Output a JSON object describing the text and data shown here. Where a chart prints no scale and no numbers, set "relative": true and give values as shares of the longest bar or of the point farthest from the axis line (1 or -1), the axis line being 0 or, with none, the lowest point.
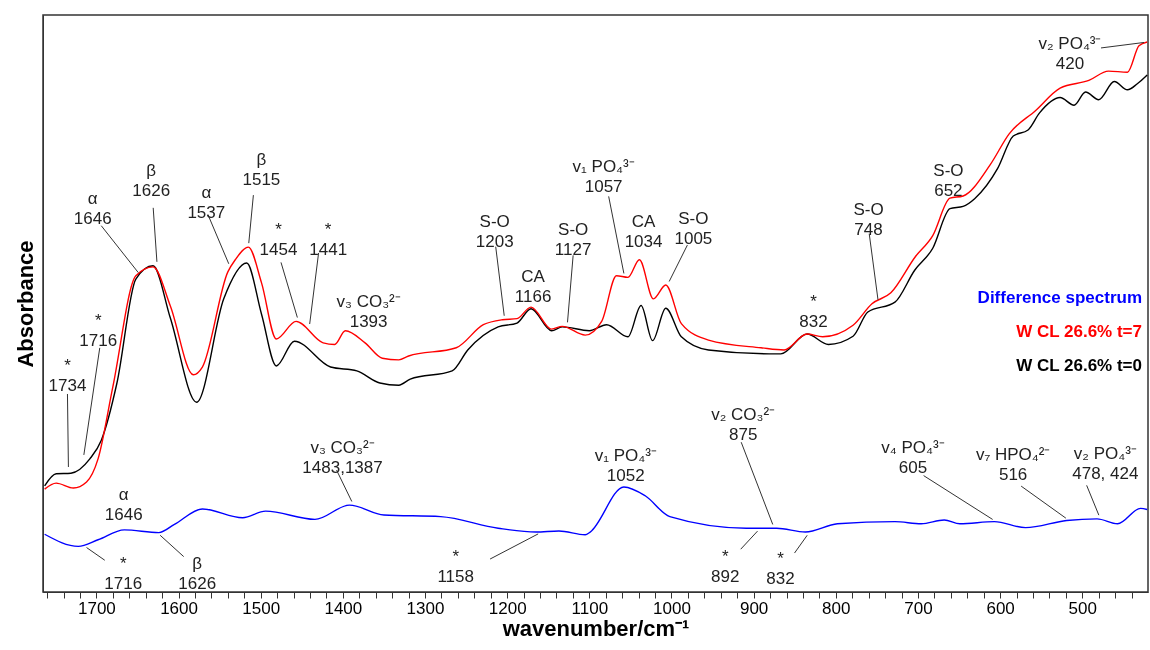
{
  "chart_data": {
    "type": "line",
    "relative": true,
    "xlabel": "wavenumber/cm⁻¹",
    "ylabel": "Absorbance",
    "xlim": [
      1765,
      420
    ],
    "xticks": [
      {
        "value": 1760,
        "label": null
      },
      {
        "value": 1740,
        "label": null
      },
      {
        "value": 1720,
        "label": null
      },
      1700,
      {
        "value": 1680,
        "label": null
      },
      {
        "value": 1660,
        "label": null
      },
      {
        "value": 1640,
        "label": null
      },
      {
        "value": 1620,
        "label": null
      },
      1600,
      {
        "value": 1580,
        "label": null
      },
      {
        "value": 1560,
        "label": null
      },
      {
        "value": 1540,
        "label": null
      },
      {
        "value": 1520,
        "label": null
      },
      1500,
      {
        "value": 1480,
        "label": null
      },
      {
        "value": 1460,
        "label": null
      },
      {
        "value": 1440,
        "label": null
      },
      {
        "value": 1420,
        "label": null
      },
      1400,
      {
        "value": 1380,
        "label": null
      },
      {
        "value": 1360,
        "label": null
      },
      {
        "value": 1340,
        "label": null
      },
      {
        "value": 1320,
        "label": null
      },
      1300,
      {
        "value": 1280,
        "label": null
      },
      {
        "value": 1260,
        "label": null
      },
      {
        "value": 1240,
        "label": null
      },
      {
        "value": 1220,
        "label": null
      },
      1200,
      {
        "value": 1180,
        "label": null
      },
      {
        "value": 1160,
        "label": null
      },
      {
        "value": 1140,
        "label": null
      },
      {
        "value": 1120,
        "label": null
      },
      1100,
      {
        "value": 1080,
        "label": null
      },
      {
        "value": 1060,
        "label": null
      },
      {
        "value": 1040,
        "label": null
      },
      {
        "value": 1020,
        "label": null
      },
      1000,
      {
        "value": 980,
        "label": null
      },
      {
        "value": 960,
        "label": null
      },
      {
        "value": 940,
        "label": null
      },
      {
        "value": 920,
        "label": null
      },
      900,
      {
        "value": 880,
        "label": null
      },
      {
        "value": 860,
        "label": null
      },
      {
        "value": 840,
        "label": null
      },
      {
        "value": 820,
        "label": null
      },
      800,
      {
        "value": 780,
        "label": null
      },
      {
        "value": 760,
        "label": null
      },
      {
        "value": 740,
        "label": null
      },
      {
        "value": 720,
        "label": null
      },
      700,
      {
        "value": 680,
        "label": null
      },
      {
        "value": 660,
        "label": null
      },
      {
        "value": 640,
        "label": null
      },
      {
        "value": 620,
        "label": null
      },
      600,
      {
        "value": 580,
        "label": null
      },
      {
        "value": 560,
        "label": null
      },
      {
        "value": 540,
        "label": null
      },
      {
        "value": 520,
        "label": null
      },
      500,
      {
        "value": 480,
        "label": null
      },
      {
        "value": 460,
        "label": null
      },
      {
        "value": 440,
        "label": null
      }
    ],
    "grid": false,
    "legend": "right",
    "marker": "none",
    "line_style": "solid",
    "series": [
      {
        "name": "Difference spectrum",
        "color": "#0000ff",
        "x": [
          1763,
          1722,
          1698,
          1666,
          1624,
          1605,
          1571,
          1522,
          1494,
          1434,
          1392,
          1350,
          1281,
          1211,
          1165,
          1137,
          1105,
          1099,
          1058,
          1032,
          1002,
          909,
          872,
          837,
          798,
          728,
          696,
          668,
          649,
          607,
          569,
          519,
          482,
          457,
          429,
          421
        ],
        "values": [
          0.105,
          0.083,
          0.095,
          0.113,
          0.108,
          0.123,
          0.151,
          0.135,
          0.147,
          0.132,
          0.158,
          0.14,
          0.137,
          0.116,
          0.109,
          0.111,
          0.104,
          0.109,
          0.191,
          0.175,
          0.137,
          0.116,
          0.116,
          0.109,
          0.124,
          0.128,
          0.124,
          0.131,
          0.124,
          0.128,
          0.117,
          0.13,
          0.133,
          0.124,
          0.152,
          0.15
        ]
      },
      {
        "name": "W CL 26.6% t=7",
        "color": "#ff0000",
        "x": [
          1763,
          1749,
          1728,
          1712,
          1698,
          1680,
          1652,
          1631,
          1610,
          1582,
          1571,
          1540,
          1531,
          1515,
          1499,
          1481,
          1457,
          1424,
          1410,
          1397,
          1373,
          1352,
          1332,
          1320,
          1262,
          1229,
          1206,
          1188,
          1171,
          1146,
          1133,
          1105,
          1085,
          1067,
          1053,
          1039,
          1022,
          1007,
          988,
          955,
          891,
          863,
          835,
          816,
          779,
          756,
          733,
          703,
          682,
          661,
          645,
          612,
          589,
          557,
          527,
          492,
          468,
          445,
          431,
          421
        ],
        "values": [
          0.187,
          0.198,
          0.189,
          0.2,
          0.242,
          0.373,
          0.575,
          0.591,
          0.52,
          0.395,
          0.409,
          0.582,
          0.604,
          0.627,
          0.562,
          0.46,
          0.492,
          0.453,
          0.45,
          0.475,
          0.453,
          0.425,
          0.422,
          0.429,
          0.444,
          0.486,
          0.495,
          0.497,
          0.518,
          0.478,
          0.483,
          0.467,
          0.492,
          0.575,
          0.572,
          0.604,
          0.533,
          0.558,
          0.488,
          0.458,
          0.444,
          0.44,
          0.469,
          0.464,
          0.485,
          0.524,
          0.544,
          0.61,
          0.648,
          0.716,
          0.72,
          0.777,
          0.833,
          0.875,
          0.916,
          0.93,
          0.947,
          0.945,
          0.993,
          1.0
        ]
      },
      {
        "name": "W CL 26.6% t=0",
        "color": "#000000",
        "x": [
          1763,
          1749,
          1731,
          1708,
          1694,
          1675,
          1652,
          1631,
          1610,
          1578,
          1545,
          1517,
          1499,
          1481,
          1459,
          1415,
          1383,
          1355,
          1332,
          1318,
          1267,
          1248,
          1211,
          1188,
          1171,
          1146,
          1133,
          1100,
          1079,
          1053,
          1037,
          1023,
          1007,
          988,
          955,
          881,
          867,
          835,
          809,
          779,
          761,
          728,
          704,
          682,
          661,
          645,
          631,
          603,
          584,
          566,
          552,
          527,
          510,
          496,
          480,
          461,
          445,
          433,
          421
        ],
        "values": [
          0.193,
          0.215,
          0.216,
          0.242,
          0.276,
          0.38,
          0.569,
          0.593,
          0.498,
          0.345,
          0.533,
          0.598,
          0.505,
          0.411,
          0.456,
          0.409,
          0.402,
          0.38,
          0.376,
          0.387,
          0.402,
          0.44,
          0.482,
          0.489,
          0.515,
          0.475,
          0.482,
          0.475,
          0.486,
          0.464,
          0.521,
          0.457,
          0.516,
          0.464,
          0.44,
          0.433,
          0.433,
          0.469,
          0.45,
          0.465,
          0.509,
          0.527,
          0.585,
          0.625,
          0.697,
          0.701,
          0.715,
          0.77,
          0.829,
          0.84,
          0.871,
          0.899,
          0.885,
          0.909,
          0.895,
          0.928,
          0.913,
          0.924,
          0.94
        ]
      }
    ],
    "annotations": [
      {
        "text": "*\n1734",
        "x": 1734,
        "y": 0.22
      },
      {
        "text": "*\n1716",
        "x": 1716,
        "y": 0.242
      },
      {
        "text": "α\n1646",
        "x": 1646,
        "y": 0.575
      },
      {
        "text": "β\n1626",
        "x": 1626,
        "y": 0.593
      },
      {
        "text": "α\n1537",
        "x": 1537,
        "y": 0.59
      },
      {
        "text": "β\n1515",
        "x": 1515,
        "y": 0.627
      },
      {
        "text": "*\n1454",
        "x": 1454,
        "y": 0.492
      },
      {
        "text": "*\n1441",
        "x": 1441,
        "y": 0.48
      },
      {
        "text": "v₃ CO₃²⁻\n1393",
        "x": 1393,
        "y": 0.475
      },
      {
        "text": "S-O\n1203",
        "x": 1203,
        "y": 0.495
      },
      {
        "text": "CA\n1166",
        "x": 1166,
        "y": 0.518
      },
      {
        "text": "S-O\n1127",
        "x": 1127,
        "y": 0.483
      },
      {
        "text": "v₁ PO₄³⁻\n1057",
        "x": 1057,
        "y": 0.572
      },
      {
        "text": "CA\n1034",
        "x": 1034,
        "y": 0.604
      },
      {
        "text": "S-O\n1005",
        "x": 1005,
        "y": 0.558
      },
      {
        "text": "*\n832",
        "x": 832,
        "y": 0.469
      },
      {
        "text": "S-O\n748",
        "x": 748,
        "y": 0.524
      },
      {
        "text": "S-O\n652",
        "x": 652,
        "y": 0.72
      },
      {
        "text": "v₂ PO₄³⁻\n420",
        "x": 420,
        "y": 1.0
      },
      {
        "text": "α\n1646",
        "x": 1646,
        "y": 0.11
      },
      {
        "text": "*\n1716",
        "x": 1716,
        "y": 0.085
      },
      {
        "text": "β\n1626",
        "x": 1626,
        "y": 0.108
      },
      {
        "text": "v₃ CO₃²⁻\n1483,1387",
        "x": 1387,
        "y": 0.158
      },
      {
        "text": "*\n1158",
        "x": 1158,
        "y": 0.109
      },
      {
        "text": "v₁ PO₄³⁻\n1052",
        "x": 1052,
        "y": 0.191
      },
      {
        "text": "v₂ CO₃²⁻\n875",
        "x": 875,
        "y": 0.116
      },
      {
        "text": "*\n892",
        "x": 892,
        "y": 0.116
      },
      {
        "text": "*\n832",
        "x": 832,
        "y": 0.109
      },
      {
        "text": "v₄ PO₄³⁻\n605",
        "x": 605,
        "y": 0.128
      },
      {
        "text": "v₇ HPO₄²⁻\n516",
        "x": 516,
        "y": 0.13
      },
      {
        "text": "v₂ PO₄³⁻\n478, 424",
        "x": 478,
        "y": 0.133
      }
    ]
  }
}
